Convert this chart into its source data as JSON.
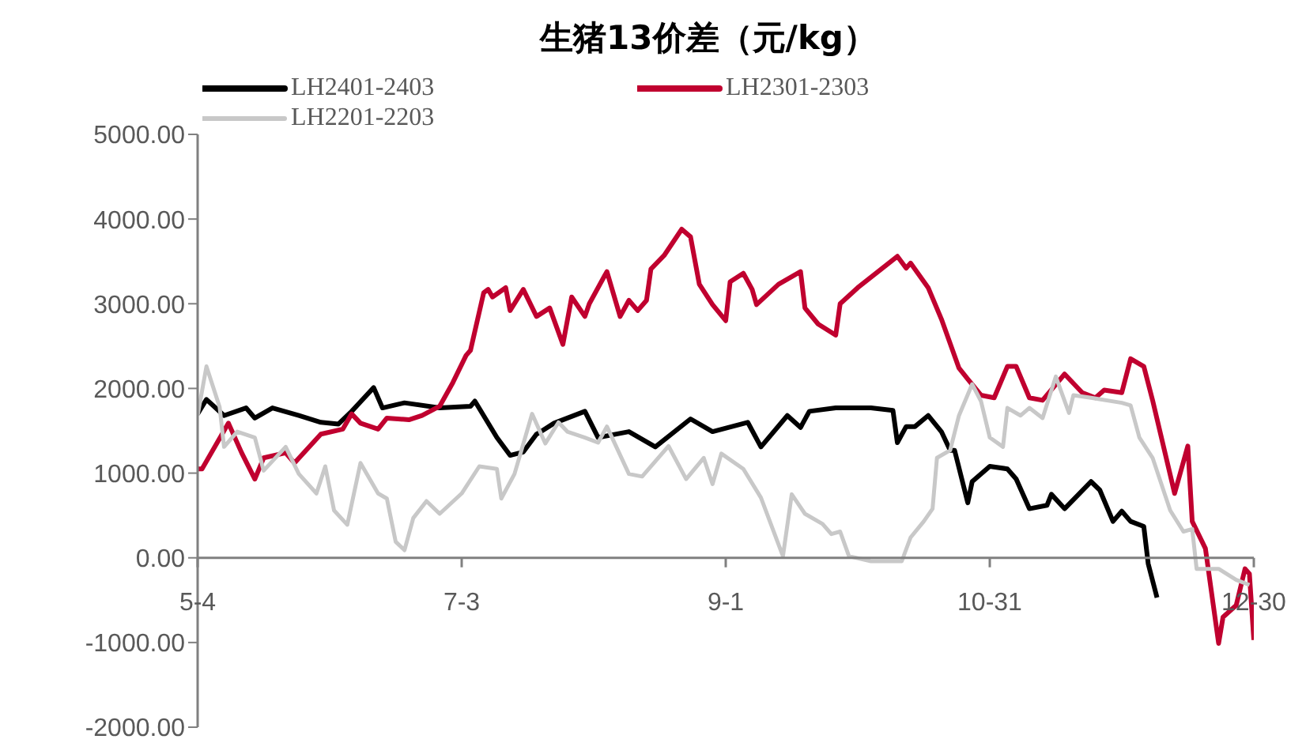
{
  "chart_data": {
    "type": "line",
    "title": "生猪13价差（元/kg）",
    "legend": "top",
    "marker": "none",
    "grid": false,
    "xlim": [
      "--05-04",
      "--12-30"
    ],
    "xticks": [
      {
        "value": "--05-04",
        "label": "5-4"
      },
      {
        "value": "--07-03",
        "label": "7-3"
      },
      {
        "value": "--09-01",
        "label": "9-1"
      },
      {
        "value": "--10-31",
        "label": "10-31"
      },
      {
        "value": "--12-30",
        "label": "12-30"
      }
    ],
    "ylim": [
      -2000,
      5000
    ],
    "yticks": [
      {
        "value": -2000,
        "label": "-2000.00"
      },
      {
        "value": -1000,
        "label": "-1000.00"
      },
      {
        "value": 0,
        "label": "0.00"
      },
      {
        "value": 1000,
        "label": "1000.00"
      },
      {
        "value": 2000,
        "label": "2000.00"
      },
      {
        "value": 3000,
        "label": "3000.00"
      },
      {
        "value": 4000,
        "label": "4000.00"
      },
      {
        "value": 5000,
        "label": "5000.00"
      }
    ],
    "series": [
      {
        "name": "LH2401-2403",
        "color": "#000000",
        "x": [
          "--05-04",
          "--05-06",
          "--05-10",
          "--05-15",
          "--05-17",
          "--05-21",
          "--05-27",
          "--06-01",
          "--06-05",
          "--06-08",
          "--06-13",
          "--06-15",
          "--06-20",
          "--06-28",
          "--07-05",
          "--07-06",
          "--07-11",
          "--07-14",
          "--07-17",
          "--07-20",
          "--07-21",
          "--07-24",
          "--07-31",
          "--08-03",
          "--08-10",
          "--08-16",
          "--08-24",
          "--08-29",
          "--09-06",
          "--09-09",
          "--09-15",
          "--09-18",
          "--09-20",
          "--09-26",
          "--10-04",
          "--10-09",
          "--10-10",
          "--10-12",
          "--10-14",
          "--10-17",
          "--10-20",
          "--10-22",
          "--10-23",
          "--10-26",
          "--10-27",
          "--10-31",
          "--11-04",
          "--11-06",
          "--11-09",
          "--11-13",
          "--11-14",
          "--11-17",
          "--11-23",
          "--11-25",
          "--11-28",
          "--11-30",
          "--12-02",
          "--12-05",
          "--12-06",
          "--12-08"
        ],
        "values": [
          1700,
          1870,
          1680,
          1770,
          1650,
          1770,
          1680,
          1600,
          1580,
          1730,
          2010,
          1770,
          1830,
          1770,
          1790,
          1850,
          1420,
          1210,
          1250,
          1460,
          1490,
          1590,
          1730,
          1420,
          1490,
          1310,
          1640,
          1490,
          1600,
          1310,
          1680,
          1540,
          1730,
          1770,
          1770,
          1740,
          1360,
          1550,
          1550,
          1680,
          1490,
          1270,
          1270,
          650,
          900,
          1080,
          1050,
          930,
          580,
          620,
          750,
          580,
          900,
          800,
          430,
          550,
          430,
          370,
          -70,
          -470
        ]
      },
      {
        "name": "LH2301-2303",
        "color": "#c0002f",
        "x": [
          "--05-04",
          "--05-05",
          "--05-11",
          "--05-14",
          "--05-17",
          "--05-19",
          "--05-24",
          "--05-26",
          "--06-01",
          "--06-06",
          "--06-08",
          "--06-10",
          "--06-14",
          "--06-16",
          "--06-21",
          "--06-24",
          "--06-28",
          "--07-01",
          "--07-04",
          "--07-05",
          "--07-08",
          "--07-09",
          "--07-10",
          "--07-13",
          "--07-14",
          "--07-17",
          "--07-20",
          "--07-23",
          "--07-26",
          "--07-28",
          "--07-31",
          "--08-01",
          "--08-05",
          "--08-08",
          "--08-10",
          "--08-12",
          "--08-14",
          "--08-15",
          "--08-18",
          "--08-22",
          "--08-24",
          "--08-26",
          "--08-29",
          "--09-01",
          "--09-02",
          "--09-05",
          "--09-07",
          "--09-08",
          "--09-13",
          "--09-18",
          "--09-19",
          "--09-22",
          "--09-26",
          "--09-27",
          "--10-01",
          "--10-10",
          "--10-12",
          "--10-13",
          "--10-17",
          "--10-20",
          "--10-24",
          "--10-26",
          "--10-29",
          "--11-01",
          "--11-04",
          "--11-06",
          "--11-09",
          "--11-12",
          "--11-17",
          "--11-21",
          "--11-24",
          "--11-26",
          "--11-30",
          "--12-02",
          "--12-05",
          "--12-07",
          "--12-12",
          "--12-15",
          "--12-16",
          "--12-19",
          "--12-22",
          "--12-23",
          "--12-26",
          "--12-28",
          "--12-29",
          "--12-30"
        ],
        "values": [
          1050,
          1050,
          1590,
          1240,
          930,
          1180,
          1240,
          1120,
          1460,
          1520,
          1700,
          1590,
          1520,
          1650,
          1630,
          1680,
          1790,
          2070,
          2390,
          2450,
          3130,
          3170,
          3080,
          3190,
          2920,
          3170,
          2850,
          2950,
          2520,
          3080,
          2850,
          3000,
          3380,
          2850,
          3040,
          2920,
          3040,
          3410,
          3570,
          3880,
          3790,
          3230,
          2990,
          2800,
          3260,
          3360,
          3170,
          2990,
          3230,
          3380,
          2950,
          2760,
          2630,
          3000,
          3190,
          3560,
          3420,
          3480,
          3190,
          2820,
          2240,
          2110,
          1920,
          1890,
          2260,
          2260,
          1890,
          1860,
          2170,
          1950,
          1890,
          1980,
          1950,
          2350,
          2260,
          1860,
          760,
          1320,
          430,
          110,
          -1010,
          -700,
          -560,
          -130,
          -190,
          -970
        ]
      },
      {
        "name": "LH2201-2203",
        "color": "#c8c8c8",
        "x": [
          "--05-04",
          "--05-06",
          "--05-09",
          "--05-10",
          "--05-13",
          "--05-17",
          "--05-19",
          "--05-24",
          "--05-27",
          "--05-31",
          "--06-02",
          "--06-04",
          "--06-07",
          "--06-10",
          "--06-14",
          "--06-16",
          "--06-18",
          "--06-20",
          "--06-22",
          "--06-25",
          "--06-28",
          "--07-03",
          "--07-07",
          "--07-11",
          "--07-12",
          "--07-15",
          "--07-19",
          "--07-22",
          "--07-25",
          "--07-27",
          "--07-31",
          "--08-03",
          "--08-05",
          "--08-10",
          "--08-13",
          "--08-19",
          "--08-23",
          "--08-27",
          "--08-29",
          "--08-31",
          "--09-05",
          "--09-09",
          "--09-14",
          "--09-16",
          "--09-19",
          "--09-23",
          "--09-25",
          "--09-27",
          "--09-29",
          "--10-04",
          "--10-11",
          "--10-13",
          "--10-16",
          "--10-18",
          "--10-19",
          "--10-22",
          "--10-24",
          "--10-27",
          "--10-29",
          "--10-31",
          "--11-03",
          "--11-04",
          "--11-07",
          "--11-09",
          "--11-12",
          "--11-15",
          "--11-18",
          "--11-19",
          "--11-23",
          "--11-30",
          "--12-02",
          "--12-04",
          "--12-07",
          "--12-11",
          "--12-14",
          "--12-16",
          "--12-17",
          "--12-22",
          "--12-26",
          "--12-29"
        ],
        "values": [
          1680,
          2260,
          1780,
          1310,
          1490,
          1420,
          1030,
          1310,
          990,
          760,
          1080,
          560,
          390,
          1120,
          760,
          700,
          190,
          90,
          470,
          670,
          520,
          760,
          1080,
          1050,
          700,
          990,
          1700,
          1350,
          1600,
          1490,
          1420,
          1360,
          1550,
          990,
          960,
          1320,
          930,
          1180,
          870,
          1230,
          1050,
          710,
          20,
          750,
          520,
          400,
          280,
          310,
          20,
          -40,
          -40,
          240,
          430,
          580,
          1180,
          1270,
          1680,
          2050,
          1850,
          1420,
          1310,
          1770,
          1680,
          1770,
          1650,
          2140,
          1710,
          1920,
          1890,
          1830,
          1800,
          1420,
          1180,
          560,
          310,
          340,
          -130,
          -130,
          -260,
          -320
        ]
      }
    ]
  }
}
